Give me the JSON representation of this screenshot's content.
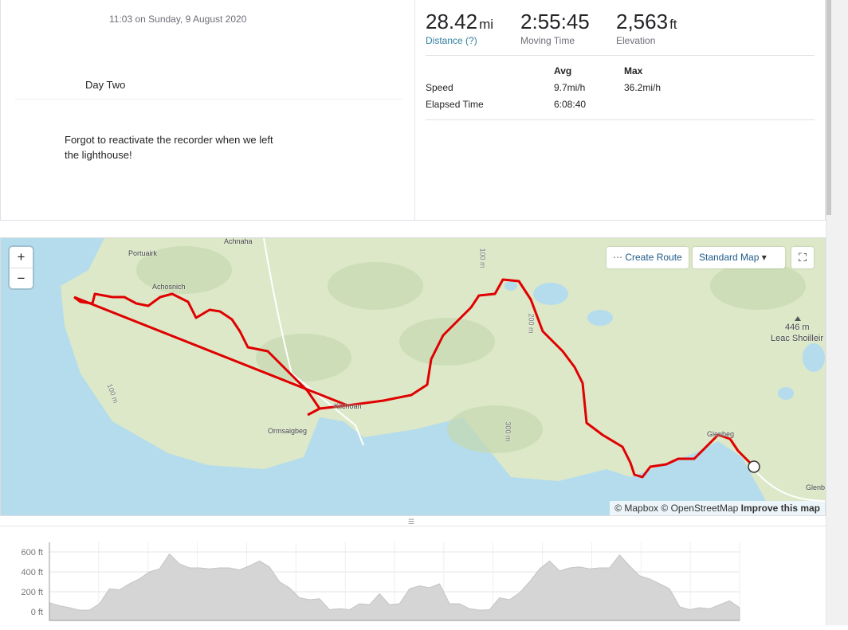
{
  "activity": {
    "date": "11:03 on Sunday, 9 August 2020",
    "title": "Day Two",
    "description": "Forgot to reactivate the recorder when we left the lighthouse!"
  },
  "stats": [
    {
      "value": "28.42",
      "unit": "mi",
      "label": "Distance (?)"
    },
    {
      "value": "2:55:45",
      "unit": "",
      "label": "Moving Time"
    },
    {
      "value": "2,563",
      "unit": "ft",
      "label": "Elevation"
    }
  ],
  "table": {
    "headers": [
      "",
      "Avg",
      "Max"
    ],
    "rows": [
      [
        "Speed",
        "9.7mi/h",
        "36.2mi/h"
      ],
      [
        "Elapsed Time",
        "6:08:40",
        ""
      ]
    ]
  },
  "map": {
    "zoom_in": "+",
    "zoom_out": "−",
    "create_route": "Create Route",
    "map_style": "Standard Map",
    "attribution": {
      "mapbox": "© Mapbox",
      "osm": "© OpenStreetMap",
      "improve": "Improve this map"
    },
    "labels": [
      "Achnaha",
      "Portuairk",
      "Achosnich",
      "Kilchoan",
      "Ormsaigbeg",
      "Glenbeg",
      "Glenbo",
      "446 m",
      "Leac Shoilleir",
      "100 m",
      "200 m",
      "300 m",
      "100 m"
    ],
    "route_color": "#e00000",
    "land_color": "#dce8c8",
    "water_color": "#b5dcec"
  },
  "chart_data": {
    "type": "area",
    "ylabel": "",
    "yticks": [
      "600 ft",
      "400 ft",
      "200 ft",
      "0 ft"
    ],
    "ytick_values": [
      600,
      400,
      200,
      0
    ],
    "ylim": [
      -90,
      700
    ],
    "grid": true,
    "elevation_ft": [
      90,
      60,
      40,
      15,
      15,
      80,
      230,
      220,
      280,
      330,
      400,
      430,
      580,
      480,
      440,
      440,
      430,
      440,
      440,
      420,
      460,
      510,
      450,
      300,
      240,
      140,
      120,
      130,
      20,
      30,
      20,
      80,
      70,
      180,
      70,
      80,
      230,
      260,
      240,
      280,
      80,
      80,
      30,
      15,
      20,
      140,
      120,
      190,
      300,
      430,
      510,
      410,
      440,
      450,
      430,
      440,
      440,
      570,
      460,
      360,
      330,
      280,
      230,
      50,
      20,
      40,
      30,
      70,
      110,
      40
    ]
  }
}
